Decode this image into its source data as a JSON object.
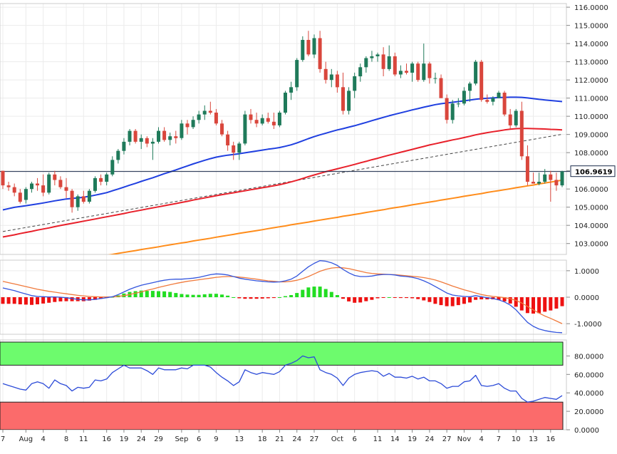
{
  "chart_data": {
    "type": "candlestick",
    "last_price_label": "106.9619",
    "last_price": 106.9619,
    "x_labels": [
      "7",
      "Aug",
      "4",
      "8",
      "11",
      "16",
      "19",
      "24",
      "29",
      "Sep",
      "6",
      "9",
      "13",
      "18",
      "21",
      "24",
      "27",
      "Oct",
      "6",
      "11",
      "14",
      "19",
      "24",
      "27",
      "Nov",
      "4",
      "7",
      "10",
      "13",
      "16"
    ],
    "x_label_index": [
      0,
      4,
      7,
      11,
      14,
      18,
      21,
      24,
      27,
      31,
      34,
      37,
      41,
      45,
      48,
      51,
      54,
      58,
      61,
      65,
      68,
      71,
      74,
      77,
      80,
      83,
      86,
      89,
      92,
      95
    ],
    "colors": {
      "up": "#1f7a5a",
      "down": "#d9463c",
      "ma_blue": "#1f3fe0",
      "ma_red": "#e8202a",
      "ma_orange": "#ff8c1a",
      "trend": "#444444",
      "hline": "#1a2a4a",
      "macd_line": "#3355dd",
      "signal_line": "#f07a3c",
      "hist_pos": "#22dd22",
      "hist_neg": "#ee1111",
      "overbought": "#6dfb6d",
      "oversold": "#fb6b6b",
      "rsi_line": "#2c4bd8"
    },
    "price_panel": {
      "ylim": [
        102.4,
        116.2
      ],
      "yticks": [
        103,
        104,
        105,
        106,
        107,
        108,
        109,
        110,
        111,
        112,
        113,
        114,
        115,
        116
      ],
      "ytick_labels": [
        "103.0000",
        "104.0000",
        "105.0000",
        "106.0000",
        "107.0000",
        "108.0000",
        "109.0000",
        "110.0000",
        "111.0000",
        "112.0000",
        "113.0000",
        "114.0000",
        "115.0000",
        "116.0000"
      ],
      "horizontal_line": 106.96,
      "candles": [
        [
          107.0,
          107.0,
          106.0,
          106.2
        ],
        [
          106.2,
          106.4,
          105.9,
          106.1
        ],
        [
          106.1,
          106.3,
          105.6,
          105.8
        ],
        [
          105.8,
          106.0,
          105.2,
          105.3
        ],
        [
          105.4,
          106.1,
          105.2,
          106.0
        ],
        [
          106.0,
          106.4,
          105.8,
          106.3
        ],
        [
          106.3,
          106.6,
          105.9,
          106.2
        ],
        [
          106.2,
          106.8,
          105.6,
          105.8
        ],
        [
          105.8,
          106.9,
          105.7,
          106.8
        ],
        [
          106.8,
          107.0,
          106.2,
          106.5
        ],
        [
          106.5,
          106.7,
          106.0,
          106.1
        ],
        [
          106.1,
          106.6,
          105.5,
          105.9
        ],
        [
          105.9,
          106.0,
          104.7,
          105.0
        ],
        [
          105.0,
          105.7,
          104.8,
          105.6
        ],
        [
          105.6,
          105.9,
          105.2,
          105.3
        ],
        [
          105.3,
          106.0,
          105.2,
          105.9
        ],
        [
          105.9,
          106.7,
          105.8,
          106.6
        ],
        [
          106.6,
          106.8,
          106.2,
          106.4
        ],
        [
          106.4,
          106.9,
          106.2,
          106.8
        ],
        [
          106.8,
          107.8,
          106.7,
          107.6
        ],
        [
          107.6,
          108.2,
          107.4,
          108.1
        ],
        [
          108.1,
          108.8,
          107.9,
          108.6
        ],
        [
          108.6,
          109.3,
          108.4,
          109.2
        ],
        [
          109.2,
          109.3,
          108.5,
          108.6
        ],
        [
          108.6,
          109.0,
          108.2,
          108.8
        ],
        [
          108.8,
          108.9,
          108.3,
          108.5
        ],
        [
          108.5,
          108.8,
          107.6,
          108.6
        ],
        [
          108.6,
          109.4,
          108.5,
          109.2
        ],
        [
          109.2,
          109.4,
          108.6,
          108.7
        ],
        [
          108.7,
          109.1,
          108.4,
          108.9
        ],
        [
          108.9,
          109.2,
          108.5,
          108.8
        ],
        [
          108.8,
          109.8,
          108.7,
          109.6
        ],
        [
          109.6,
          109.8,
          109.0,
          109.4
        ],
        [
          109.4,
          110.0,
          109.3,
          109.8
        ],
        [
          109.8,
          110.3,
          109.6,
          110.1
        ],
        [
          110.1,
          110.6,
          109.8,
          110.3
        ],
        [
          110.3,
          110.8,
          110.1,
          110.2
        ],
        [
          110.2,
          110.4,
          109.5,
          109.6
        ],
        [
          109.6,
          109.8,
          108.9,
          109.0
        ],
        [
          109.0,
          109.2,
          108.1,
          108.4
        ],
        [
          108.4,
          108.6,
          107.6,
          108.0
        ],
        [
          108.0,
          108.6,
          107.6,
          108.5
        ],
        [
          108.5,
          110.3,
          108.4,
          110.1
        ],
        [
          110.1,
          110.4,
          109.6,
          109.8
        ],
        [
          109.8,
          110.2,
          109.4,
          109.6
        ],
        [
          109.6,
          110.1,
          109.5,
          109.9
        ],
        [
          109.9,
          110.2,
          109.6,
          109.7
        ],
        [
          109.7,
          110.2,
          109.3,
          109.5
        ],
        [
          109.5,
          110.3,
          109.4,
          110.2
        ],
        [
          110.2,
          111.4,
          110.1,
          111.3
        ],
        [
          111.3,
          111.9,
          110.9,
          111.6
        ],
        [
          111.6,
          113.2,
          111.4,
          113.1
        ],
        [
          113.1,
          114.4,
          113.0,
          114.2
        ],
        [
          114.2,
          114.7,
          113.3,
          113.4
        ],
        [
          113.4,
          114.5,
          113.2,
          114.3
        ],
        [
          114.3,
          114.7,
          112.4,
          112.6
        ],
        [
          112.6,
          113.0,
          111.8,
          112.0
        ],
        [
          112.0,
          112.6,
          111.6,
          112.3
        ],
        [
          112.3,
          112.5,
          111.3,
          111.6
        ],
        [
          111.6,
          112.4,
          110.1,
          110.3
        ],
        [
          110.3,
          111.6,
          110.1,
          111.4
        ],
        [
          111.4,
          112.4,
          111.0,
          112.2
        ],
        [
          112.2,
          112.9,
          111.9,
          112.7
        ],
        [
          112.7,
          113.3,
          112.4,
          113.2
        ],
        [
          113.2,
          113.6,
          113.0,
          113.3
        ],
        [
          113.3,
          113.5,
          113.0,
          113.4
        ],
        [
          113.4,
          113.8,
          112.2,
          112.6
        ],
        [
          112.6,
          113.9,
          112.5,
          113.3
        ],
        [
          113.3,
          113.5,
          112.2,
          112.3
        ],
        [
          112.3,
          112.8,
          112.1,
          112.5
        ],
        [
          112.5,
          112.9,
          112.3,
          112.4
        ],
        [
          112.4,
          113.0,
          111.9,
          112.9
        ],
        [
          112.9,
          113.0,
          111.9,
          112.0
        ],
        [
          112.0,
          114.0,
          111.9,
          112.9
        ],
        [
          112.9,
          113.0,
          111.8,
          112.1
        ],
        [
          112.1,
          112.4,
          111.8,
          112.1
        ],
        [
          112.1,
          112.3,
          111.0,
          111.0
        ],
        [
          111.0,
          111.2,
          109.6,
          109.8
        ],
        [
          109.8,
          110.9,
          109.6,
          110.7
        ],
        [
          110.7,
          111.0,
          110.5,
          110.7
        ],
        [
          110.7,
          111.6,
          110.6,
          111.4
        ],
        [
          111.4,
          111.9,
          110.8,
          111.8
        ],
        [
          111.8,
          113.1,
          111.7,
          113.0
        ],
        [
          113.0,
          113.1,
          110.8,
          110.9
        ],
        [
          110.9,
          111.2,
          110.7,
          110.8
        ],
        [
          110.8,
          111.1,
          110.6,
          111.0
        ],
        [
          111.0,
          111.4,
          111.0,
          111.3
        ],
        [
          111.3,
          111.4,
          110.0,
          110.1
        ],
        [
          110.1,
          110.4,
          109.3,
          109.5
        ],
        [
          109.5,
          110.4,
          109.4,
          110.3
        ],
        [
          110.3,
          110.8,
          107.6,
          107.8
        ],
        [
          107.8,
          108.4,
          106.2,
          106.4
        ],
        [
          106.4,
          106.9,
          106.3,
          106.3
        ],
        [
          106.3,
          106.9,
          106.2,
          106.4
        ],
        [
          106.4,
          107.1,
          106.3,
          106.8
        ],
        [
          106.8,
          107.0,
          105.3,
          106.5
        ],
        [
          106.5,
          106.9,
          105.9,
          106.2
        ],
        [
          106.2,
          107.0,
          106.1,
          106.96
        ]
      ],
      "ma_blue": [
        104.85,
        104.92,
        104.99,
        105.04,
        105.08,
        105.13,
        105.18,
        105.23,
        105.29,
        105.35,
        105.4,
        105.45,
        105.48,
        105.51,
        105.55,
        105.6,
        105.66,
        105.73,
        105.8,
        105.9,
        106.0,
        106.1,
        106.21,
        106.31,
        106.42,
        106.52,
        106.62,
        106.73,
        106.84,
        106.94,
        107.05,
        107.16,
        107.27,
        107.38,
        107.48,
        107.58,
        107.67,
        107.75,
        107.81,
        107.86,
        107.9,
        107.94,
        107.99,
        108.04,
        108.09,
        108.14,
        108.19,
        108.23,
        108.28,
        108.35,
        108.43,
        108.53,
        108.65,
        108.77,
        108.88,
        108.98,
        109.07,
        109.16,
        109.25,
        109.32,
        109.4,
        109.48,
        109.57,
        109.66,
        109.76,
        109.85,
        109.94,
        110.03,
        110.11,
        110.19,
        110.27,
        110.35,
        110.42,
        110.5,
        110.57,
        110.64,
        110.69,
        110.73,
        110.77,
        110.81,
        110.85,
        110.89,
        110.94,
        110.97,
        110.99,
        111.01,
        111.03,
        111.04,
        111.05,
        111.05,
        111.04,
        111.01,
        110.97,
        110.93,
        110.9,
        110.87,
        110.84,
        110.81
      ],
      "ma_red": [
        103.36,
        103.42,
        103.48,
        103.55,
        103.61,
        103.67,
        103.74,
        103.8,
        103.86,
        103.93,
        103.99,
        104.05,
        104.11,
        104.17,
        104.23,
        104.29,
        104.35,
        104.41,
        104.47,
        104.53,
        104.59,
        104.65,
        104.72,
        104.78,
        104.84,
        104.9,
        104.96,
        105.02,
        105.08,
        105.14,
        105.2,
        105.26,
        105.32,
        105.39,
        105.45,
        105.51,
        105.57,
        105.63,
        105.69,
        105.74,
        105.79,
        105.85,
        105.9,
        105.96,
        106.01,
        106.07,
        106.12,
        106.18,
        106.24,
        106.31,
        106.39,
        106.48,
        106.58,
        106.68,
        106.77,
        106.86,
        106.95,
        107.03,
        107.11,
        107.19,
        107.27,
        107.35,
        107.44,
        107.52,
        107.61,
        107.69,
        107.78,
        107.86,
        107.94,
        108.02,
        108.1,
        108.18,
        108.26,
        108.34,
        108.42,
        108.49,
        108.56,
        108.63,
        108.7,
        108.76,
        108.83,
        108.9,
        108.98,
        109.04,
        109.1,
        109.15,
        109.2,
        109.25,
        109.29,
        109.32,
        109.33,
        109.33,
        109.32,
        109.31,
        109.3,
        109.28,
        109.27,
        109.25
      ],
      "ma_orange": [
        101.41,
        101.46,
        101.51,
        101.57,
        101.62,
        101.67,
        101.72,
        101.78,
        101.83,
        101.88,
        101.93,
        101.99,
        102.04,
        102.09,
        102.14,
        102.19,
        102.25,
        102.3,
        102.35,
        102.4,
        102.46,
        102.51,
        102.56,
        102.61,
        102.67,
        102.72,
        102.77,
        102.82,
        102.88,
        102.93,
        102.98,
        103.03,
        103.08,
        103.14,
        103.19,
        103.24,
        103.29,
        103.35,
        103.4,
        103.45,
        103.5,
        103.56,
        103.61,
        103.66,
        103.71,
        103.76,
        103.82,
        103.87,
        103.92,
        103.97,
        104.03,
        104.08,
        104.13,
        104.18,
        104.24,
        104.29,
        104.34,
        104.39,
        104.44,
        104.5,
        104.55,
        104.6,
        104.65,
        104.71,
        104.76,
        104.81,
        104.86,
        104.92,
        104.97,
        105.02,
        105.07,
        105.13,
        105.18,
        105.23,
        105.28,
        105.33,
        105.39,
        105.44,
        105.49,
        105.54,
        105.6,
        105.65,
        105.7,
        105.75,
        105.81,
        105.86,
        105.91,
        105.96,
        106.01,
        106.07,
        106.12,
        106.17,
        106.22,
        106.28,
        106.33,
        106.38,
        106.43,
        106.49
      ],
      "trendline": [
        [
          0,
          103.66
        ],
        [
          97,
          109.01
        ]
      ]
    },
    "macd_panel": {
      "ylim": [
        -1.4,
        1.4
      ],
      "yticks": [
        -1,
        0,
        1
      ],
      "ytick_labels": [
        "-1.0000",
        "0.0000",
        "1.0000"
      ],
      "macd": [
        0.35,
        0.3,
        0.25,
        0.18,
        0.12,
        0.06,
        0.03,
        0.02,
        0.01,
        0.01,
        0.0,
        -0.02,
        -0.05,
        -0.08,
        -0.1,
        -0.1,
        -0.08,
        -0.05,
        -0.02,
        0.02,
        0.1,
        0.2,
        0.3,
        0.38,
        0.45,
        0.5,
        0.55,
        0.6,
        0.64,
        0.67,
        0.68,
        0.68,
        0.7,
        0.72,
        0.75,
        0.8,
        0.85,
        0.88,
        0.87,
        0.84,
        0.78,
        0.72,
        0.68,
        0.65,
        0.62,
        0.6,
        0.58,
        0.57,
        0.58,
        0.62,
        0.68,
        0.8,
        0.98,
        1.15,
        1.28,
        1.38,
        1.36,
        1.3,
        1.2,
        1.05,
        0.92,
        0.82,
        0.78,
        0.78,
        0.8,
        0.84,
        0.86,
        0.86,
        0.84,
        0.8,
        0.78,
        0.75,
        0.7,
        0.62,
        0.52,
        0.4,
        0.28,
        0.16,
        0.08,
        0.05,
        0.03,
        0.02,
        0.06,
        0.02,
        -0.02,
        -0.05,
        -0.1,
        -0.18,
        -0.3,
        -0.48,
        -0.72,
        -0.95,
        -1.1,
        -1.2,
        -1.26,
        -1.3,
        -1.33,
        -1.34
      ],
      "signal": [
        0.6,
        0.55,
        0.5,
        0.45,
        0.4,
        0.35,
        0.3,
        0.26,
        0.22,
        0.19,
        0.16,
        0.13,
        0.1,
        0.07,
        0.05,
        0.03,
        0.02,
        0.01,
        0.01,
        0.01,
        0.03,
        0.06,
        0.1,
        0.15,
        0.2,
        0.26,
        0.31,
        0.37,
        0.42,
        0.47,
        0.52,
        0.56,
        0.6,
        0.63,
        0.66,
        0.69,
        0.72,
        0.75,
        0.77,
        0.78,
        0.78,
        0.76,
        0.74,
        0.71,
        0.68,
        0.65,
        0.62,
        0.6,
        0.58,
        0.58,
        0.6,
        0.64,
        0.7,
        0.78,
        0.88,
        0.98,
        1.05,
        1.1,
        1.12,
        1.11,
        1.08,
        1.03,
        0.98,
        0.93,
        0.9,
        0.88,
        0.87,
        0.86,
        0.85,
        0.83,
        0.81,
        0.79,
        0.77,
        0.74,
        0.7,
        0.65,
        0.58,
        0.5,
        0.42,
        0.35,
        0.28,
        0.22,
        0.16,
        0.1,
        0.06,
        0.03,
        0.01,
        -0.02,
        -0.06,
        -0.12,
        -0.22,
        -0.35,
        -0.48,
        -0.6,
        -0.71,
        -0.8,
        -0.9,
        -1.0
      ]
    },
    "rsi_panel": {
      "ylim": [
        0,
        100
      ],
      "yticks": [
        0,
        20,
        40,
        60,
        80
      ],
      "ytick_labels": [
        "0.0000",
        "20.0000",
        "40.0000",
        "60.0000",
        "80.0000"
      ],
      "overbought": 70,
      "oversold": 30,
      "rsi": [
        50,
        48,
        46,
        44,
        43,
        50,
        52,
        50,
        45,
        54,
        50,
        48,
        42,
        46,
        45,
        46,
        54,
        53,
        55,
        62,
        66,
        70,
        67,
        67,
        67,
        64,
        60,
        67,
        65,
        65,
        65,
        67,
        66,
        70,
        70,
        70,
        68,
        62,
        57,
        53,
        48,
        52,
        65,
        62,
        60,
        62,
        61,
        60,
        63,
        70,
        72,
        75,
        80,
        78,
        79,
        65,
        62,
        60,
        56,
        48,
        56,
        60,
        62,
        63,
        64,
        63,
        58,
        61,
        57,
        57,
        56,
        58,
        55,
        57,
        53,
        53,
        50,
        45,
        47,
        47,
        52,
        53,
        59,
        48,
        47,
        48,
        50,
        45,
        42,
        42,
        34,
        30,
        31,
        33,
        35,
        34,
        33,
        37
      ]
    }
  }
}
